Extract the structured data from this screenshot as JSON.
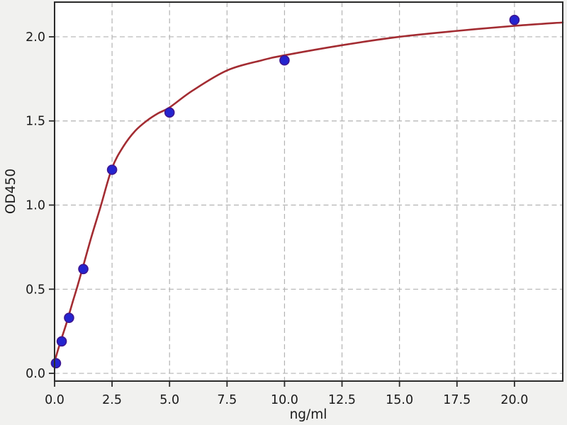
{
  "figure": {
    "background_color": "#f1f1ef",
    "plot_background_color": "#ffffff",
    "spine_color": "#2b2b2b",
    "text_color": "#1a1a1a"
  },
  "chart_data": {
    "type": "scatter",
    "title": "",
    "xlabel": "ng/ml",
    "ylabel": "OD450",
    "xlim": [
      0,
      22.1
    ],
    "ylim": [
      -0.046,
      2.206
    ],
    "x_ticks": [
      0,
      2.5,
      5,
      7.5,
      10,
      12.5,
      15,
      17.5,
      20
    ],
    "x_tick_labels": [
      "0.0",
      "2.5",
      "5.0",
      "7.5",
      "10.0",
      "12.5",
      "15.0",
      "17.5",
      "20.0"
    ],
    "y_ticks": [
      0,
      0.5,
      1,
      1.5,
      2
    ],
    "y_tick_labels": [
      "0.0",
      "0.5",
      "1.0",
      "1.5",
      "2.0"
    ],
    "grid": {
      "visible": true,
      "style": "dashed",
      "color": "#b3b3b3"
    },
    "legend_position": "none",
    "series": [
      {
        "name": "fitted-curve",
        "type": "line",
        "color": "#a32c32",
        "line_width": 2.6,
        "points": [
          [
            0,
            0.07
          ],
          [
            0.15,
            0.14
          ],
          [
            0.31,
            0.21
          ],
          [
            0.5,
            0.29
          ],
          [
            0.63,
            0.35
          ],
          [
            0.8,
            0.43
          ],
          [
            1.0,
            0.52
          ],
          [
            1.25,
            0.64
          ],
          [
            1.6,
            0.81
          ],
          [
            2.0,
            0.99
          ],
          [
            2.5,
            1.22
          ],
          [
            3.0,
            1.35
          ],
          [
            3.5,
            1.44
          ],
          [
            4.0,
            1.5
          ],
          [
            4.5,
            1.545
          ],
          [
            5.0,
            1.58
          ],
          [
            6.0,
            1.68
          ],
          [
            7.5,
            1.8
          ],
          [
            9.0,
            1.86
          ],
          [
            10.0,
            1.89
          ],
          [
            12.5,
            1.95
          ],
          [
            15.0,
            2.0
          ],
          [
            17.5,
            2.035
          ],
          [
            20.0,
            2.065
          ],
          [
            22.1,
            2.085
          ]
        ]
      },
      {
        "name": "standard-points",
        "type": "scatter",
        "marker": "circle",
        "color": "#2424cf",
        "edge_color": "#3d1692",
        "marker_radius": 6.5,
        "points": [
          [
            0.06,
            0.06
          ],
          [
            0.31,
            0.19
          ],
          [
            0.63,
            0.33
          ],
          [
            1.25,
            0.62
          ],
          [
            2.5,
            1.21
          ],
          [
            5,
            1.55
          ],
          [
            10,
            1.86
          ],
          [
            20,
            2.1
          ]
        ]
      }
    ]
  }
}
